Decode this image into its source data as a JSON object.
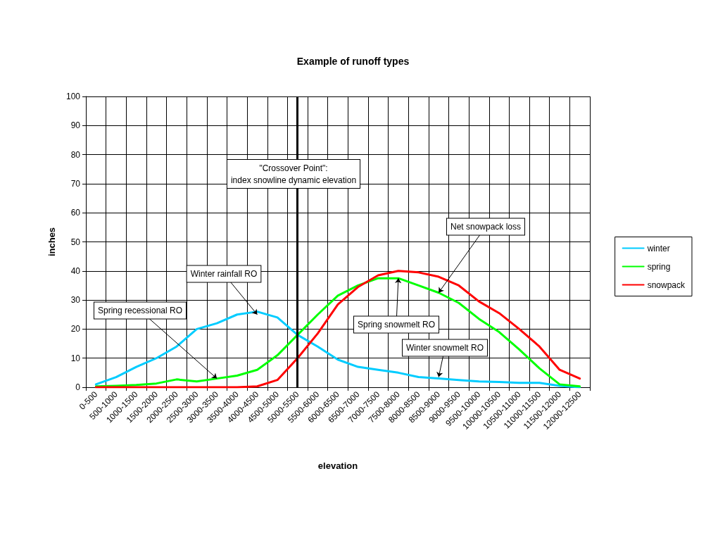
{
  "chart_data": {
    "type": "line",
    "title": "Example of runoff types",
    "xlabel": "elevation",
    "ylabel": "inches",
    "categories": [
      "0-500",
      "500-1000",
      "1000-1500",
      "1500-2000",
      "2000-2500",
      "2500-3000",
      "3000-3500",
      "3500-4000",
      "4000-4500",
      "4500-5000",
      "5000-5500",
      "5500-6000",
      "6000-6500",
      "6500-7000",
      "7000-7500",
      "7500-8000",
      "8000-8500",
      "8500-9000",
      "9000-9500",
      "9500-10000",
      "10000-10500",
      "10500-11000",
      "11000-11500",
      "11500-12000",
      "12000-12500"
    ],
    "series": [
      {
        "name": "winter",
        "color": "#00ccff",
        "values": [
          1,
          3.5,
          7,
          10,
          14,
          20,
          22,
          25,
          26,
          24,
          18,
          14,
          9.5,
          7,
          6,
          5,
          3.5,
          3,
          2.5,
          2,
          1.8,
          1.5,
          1.5,
          0.5,
          0
        ]
      },
      {
        "name": "spring",
        "color": "#00ff00",
        "values": [
          0.3,
          0.5,
          0.8,
          1.3,
          2.7,
          2,
          3,
          4,
          6,
          11,
          18,
          25,
          31.5,
          35,
          37.5,
          37.5,
          35,
          32.5,
          29,
          23.5,
          19,
          13,
          6.5,
          1,
          0.3
        ]
      },
      {
        "name": "snowpack",
        "color": "#ff0000",
        "values": [
          0,
          0,
          0,
          0,
          0,
          0,
          0,
          0,
          0.3,
          2.5,
          10,
          18.5,
          28.5,
          34.5,
          38.5,
          40,
          39.5,
          38,
          35,
          29.5,
          25.5,
          20,
          14,
          6,
          3
        ]
      }
    ],
    "ylim": [
      0,
      100
    ],
    "yticks": [
      0,
      10,
      20,
      30,
      40,
      50,
      60,
      70,
      80,
      90,
      100
    ],
    "ref_lines": [
      {
        "axis": "x",
        "value": "5000-5500",
        "label": "\"Crossover Point\":\nindex snowline dynamic elevation",
        "color": "#000000"
      }
    ],
    "annotations": [
      {
        "text": "Winter rainfall RO",
        "x": "4000-4500",
        "y": 25
      },
      {
        "text": "Spring recessional RO",
        "x": "3000-3500",
        "y": 3
      },
      {
        "text": "Spring snowmelt RO",
        "x": "7500-8000",
        "y": 37.5
      },
      {
        "text": "Winter snowmelt RO",
        "x": "8500-9000",
        "y": 3.5
      },
      {
        "text": "Net snowpack loss",
        "x": "8500-9000",
        "y": 32.5
      }
    ],
    "grid": true,
    "legend": "right",
    "marker": "none",
    "line_style": "solid"
  }
}
